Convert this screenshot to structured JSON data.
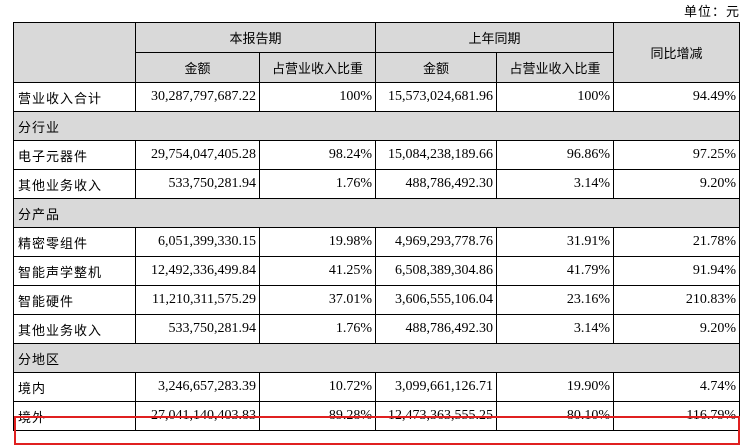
{
  "unit_label": "单位：元",
  "header": {
    "current_period": "本报告期",
    "prior_period": "上年同期",
    "yoy_change": "同比增减",
    "amount": "金额",
    "share_of_revenue": "占营业收入比重"
  },
  "rows": [
    {
      "type": "data",
      "label": "营业收入合计",
      "cur_amount": "30,287,797,687.22",
      "cur_share": "100%",
      "prev_amount": "15,573,024,681.96",
      "prev_share": "100%",
      "yoy": "94.49%"
    },
    {
      "type": "section",
      "label": "分行业"
    },
    {
      "type": "data",
      "label": "电子元器件",
      "cur_amount": "29,754,047,405.28",
      "cur_share": "98.24%",
      "prev_amount": "15,084,238,189.66",
      "prev_share": "96.86%",
      "yoy": "97.25%"
    },
    {
      "type": "data",
      "label": "其他业务收入",
      "cur_amount": "533,750,281.94",
      "cur_share": "1.76%",
      "prev_amount": "488,786,492.30",
      "prev_share": "3.14%",
      "yoy": "9.20%"
    },
    {
      "type": "section",
      "label": "分产品"
    },
    {
      "type": "data",
      "label": "精密零组件",
      "cur_amount": "6,051,399,330.15",
      "cur_share": "19.98%",
      "prev_amount": "4,969,293,778.76",
      "prev_share": "31.91%",
      "yoy": "21.78%"
    },
    {
      "type": "data",
      "label": "智能声学整机",
      "cur_amount": "12,492,336,499.84",
      "cur_share": "41.25%",
      "prev_amount": "6,508,389,304.86",
      "prev_share": "41.79%",
      "yoy": "91.94%"
    },
    {
      "type": "data",
      "label": "智能硬件",
      "cur_amount": "11,210,311,575.29",
      "cur_share": "37.01%",
      "prev_amount": "3,606,555,106.04",
      "prev_share": "23.16%",
      "yoy": "210.83%"
    },
    {
      "type": "data",
      "label": "其他业务收入",
      "cur_amount": "533,750,281.94",
      "cur_share": "1.76%",
      "prev_amount": "488,786,492.30",
      "prev_share": "3.14%",
      "yoy": "9.20%"
    },
    {
      "type": "section",
      "label": "分地区"
    },
    {
      "type": "data",
      "label": "境内",
      "cur_amount": "3,246,657,283.39",
      "cur_share": "10.72%",
      "prev_amount": "3,099,661,126.71",
      "prev_share": "19.90%",
      "yoy": "4.74%"
    },
    {
      "type": "data",
      "label": "境外",
      "cur_amount": "27,041,140,403.83",
      "cur_share": "89.28%",
      "prev_amount": "12,473,363,555.25",
      "prev_share": "80.10%",
      "yoy": "116.79%",
      "highlighted": true
    }
  ],
  "highlight_color": "#e02020",
  "header_bg": "#d9d9d9"
}
